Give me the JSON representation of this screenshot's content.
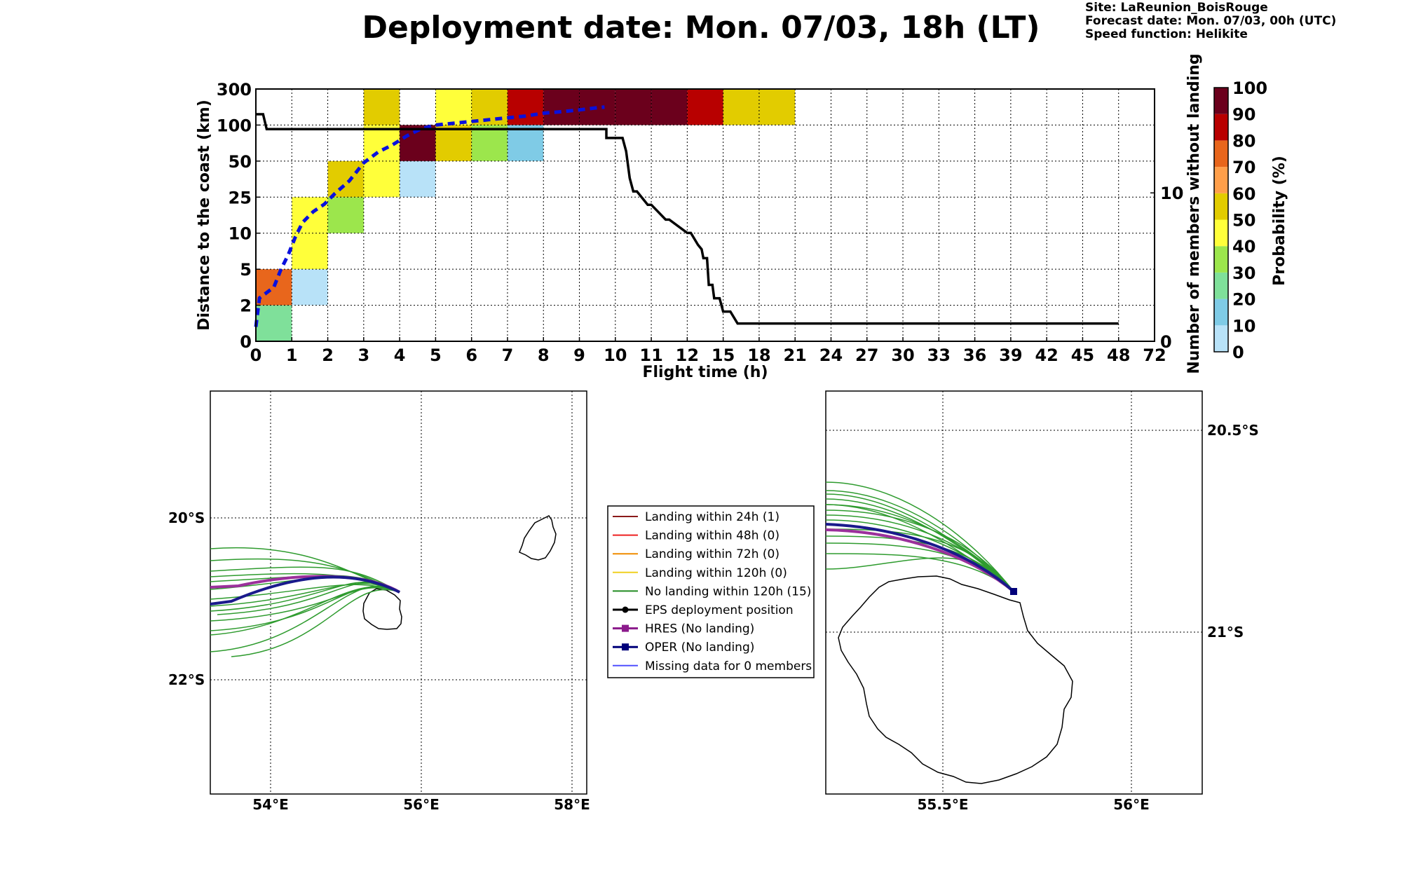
{
  "title": "Deployment date: Mon. 07/03, 18h (LT)",
  "info": {
    "site": "Site: LaReunion_BoisRouge",
    "forecast": "Forecast date: Mon. 07/03, 00h (UTC)",
    "speed": "Speed function: Helikite"
  },
  "chart_data": {
    "type": "heatmap",
    "xlabel": "Flight time (h)",
    "ylabel": "Distance to the coast (km)",
    "y2label": "Number of members without landing",
    "x_ticks": [
      "0",
      "1",
      "2",
      "3",
      "4",
      "5",
      "6",
      "7",
      "8",
      "9",
      "10",
      "11",
      "12",
      "15",
      "18",
      "21",
      "24",
      "27",
      "30",
      "33",
      "36",
      "39",
      "42",
      "45",
      "48",
      "72"
    ],
    "y_ticks": [
      "0",
      "2",
      "5",
      "10",
      "25",
      "50",
      "100",
      "300"
    ],
    "y2_ticks": [
      "0",
      "10"
    ],
    "y2lim": [
      0,
      17
    ],
    "grid": true,
    "cells": [
      {
        "x": 0,
        "y": 0,
        "p": 25
      },
      {
        "x": 0,
        "y": 1,
        "p": 75
      },
      {
        "x": 1,
        "y": 1,
        "p": 5
      },
      {
        "x": 1,
        "y": 2,
        "p": 45
      },
      {
        "x": 1,
        "y": 3,
        "p": 45
      },
      {
        "x": 2,
        "y": 3,
        "p": 35
      },
      {
        "x": 2,
        "y": 4,
        "p": 55
      },
      {
        "x": 3,
        "y": 4,
        "p": 45
      },
      {
        "x": 3,
        "y": 5,
        "p": 45
      },
      {
        "x": 3,
        "y": 6,
        "p": 55
      },
      {
        "x": 4,
        "y": 4,
        "p": 5
      },
      {
        "x": 4,
        "y": 5,
        "p": 95
      },
      {
        "x": 5,
        "y": 5,
        "p": 55
      },
      {
        "x": 5,
        "y": 6,
        "p": 45
      },
      {
        "x": 6,
        "y": 5,
        "p": 35
      },
      {
        "x": 6,
        "y": 6,
        "p": 55
      },
      {
        "x": 7,
        "y": 5,
        "p": 15
      },
      {
        "x": 7,
        "y": 6,
        "p": 85
      },
      {
        "x": 8,
        "y": 6,
        "p": 95
      },
      {
        "x": 9,
        "y": 6,
        "p": 95
      },
      {
        "x": 10,
        "y": 6,
        "p": 95
      },
      {
        "x": 11,
        "y": 6,
        "p": 95
      },
      {
        "x": 12,
        "y": 6,
        "p": 85
      },
      {
        "x": 13,
        "y": 6,
        "p": 55
      },
      {
        "x": 14,
        "y": 6,
        "p": 55
      }
    ],
    "median_distance": {
      "name": "",
      "x": [
        0,
        0.1,
        0.3,
        0.5,
        0.7,
        0.9,
        1.1,
        1.3,
        1.6,
        1.9,
        2.2,
        2.6,
        3.0,
        3.4,
        3.8,
        4.2,
        4.6,
        5.0,
        5.5,
        6.0,
        6.5,
        7.0,
        7.5,
        8.0,
        8.5,
        9.0,
        9.5,
        9.7
      ],
      "y": [
        0.4,
        1.2,
        1.35,
        1.5,
        2.0,
        2.4,
        2.9,
        3.3,
        3.6,
        3.8,
        4.1,
        4.45,
        4.95,
        5.25,
        5.45,
        5.7,
        5.9,
        6.0,
        6.05,
        6.1,
        6.15,
        6.2,
        6.25,
        6.33,
        6.37,
        6.42,
        6.48,
        6.5
      ]
    },
    "members_without_landing": {
      "x": [
        0,
        0.2,
        0.3,
        9.75,
        9.75,
        10.2,
        10.3,
        10.4,
        10.5,
        10.6,
        10.9,
        11.0,
        11.4,
        11.5,
        12.0,
        12.1,
        12.3,
        12.4,
        12.45,
        12.55,
        12.6,
        12.7,
        12.75,
        12.9,
        13.0,
        13.2,
        13.4,
        13.5,
        14.5,
        14.6,
        24.0
      ],
      "y": [
        15.3,
        15.3,
        14.3,
        14.3,
        13.7,
        13.7,
        12.8,
        11.0,
        10.1,
        10.1,
        9.2,
        9.2,
        8.2,
        8.2,
        7.3,
        7.3,
        6.5,
        6.2,
        5.6,
        5.6,
        3.8,
        3.8,
        2.9,
        2.9,
        2.0,
        2.0,
        1.2,
        1.2,
        1.2,
        1.2,
        1.2
      ]
    },
    "colorbar": {
      "label": "Probability (%)",
      "ticks": [
        "0",
        "10",
        "20",
        "30",
        "40",
        "50",
        "60",
        "70",
        "80",
        "90",
        "100"
      ],
      "colors": [
        "#b8e2f8",
        "#7fcbe6",
        "#7fe09a",
        "#9ce64c",
        "#ffff3a",
        "#e2cc00",
        "#ff9f4a",
        "#e8661c",
        "#b80000",
        "#6b001c"
      ]
    }
  },
  "map_left": {
    "xticks": [
      "54°E",
      "56°E",
      "58°E"
    ],
    "yticks": [
      "20°S",
      "22°S"
    ]
  },
  "map_right": {
    "xticks": [
      "55.5°E",
      "56°E"
    ],
    "yticks": [
      "20.5°S",
      "21°S"
    ]
  },
  "legend": [
    {
      "label": "Landing within 24h (1)",
      "color": "#8b1a1a",
      "marker": ""
    },
    {
      "label": "Landing within 48h (0)",
      "color": "#ee2020",
      "marker": ""
    },
    {
      "label": "Landing within 72h (0)",
      "color": "#f08c00",
      "marker": ""
    },
    {
      "label": "Landing within 120h (0)",
      "color": "#f0d020",
      "marker": ""
    },
    {
      "label": "No landing within 120h (15)",
      "color": "#228b22",
      "marker": ""
    },
    {
      "label": "EPS deployment position",
      "color": "#000000",
      "marker": "circle"
    },
    {
      "label": "HRES (No landing)",
      "color": "#8b1a8b",
      "marker": "square"
    },
    {
      "label": "OPER (No landing)",
      "color": "#00007a",
      "marker": "square"
    },
    {
      "label": "Missing data for 0 members",
      "color": "#5050ff",
      "marker": ""
    }
  ]
}
